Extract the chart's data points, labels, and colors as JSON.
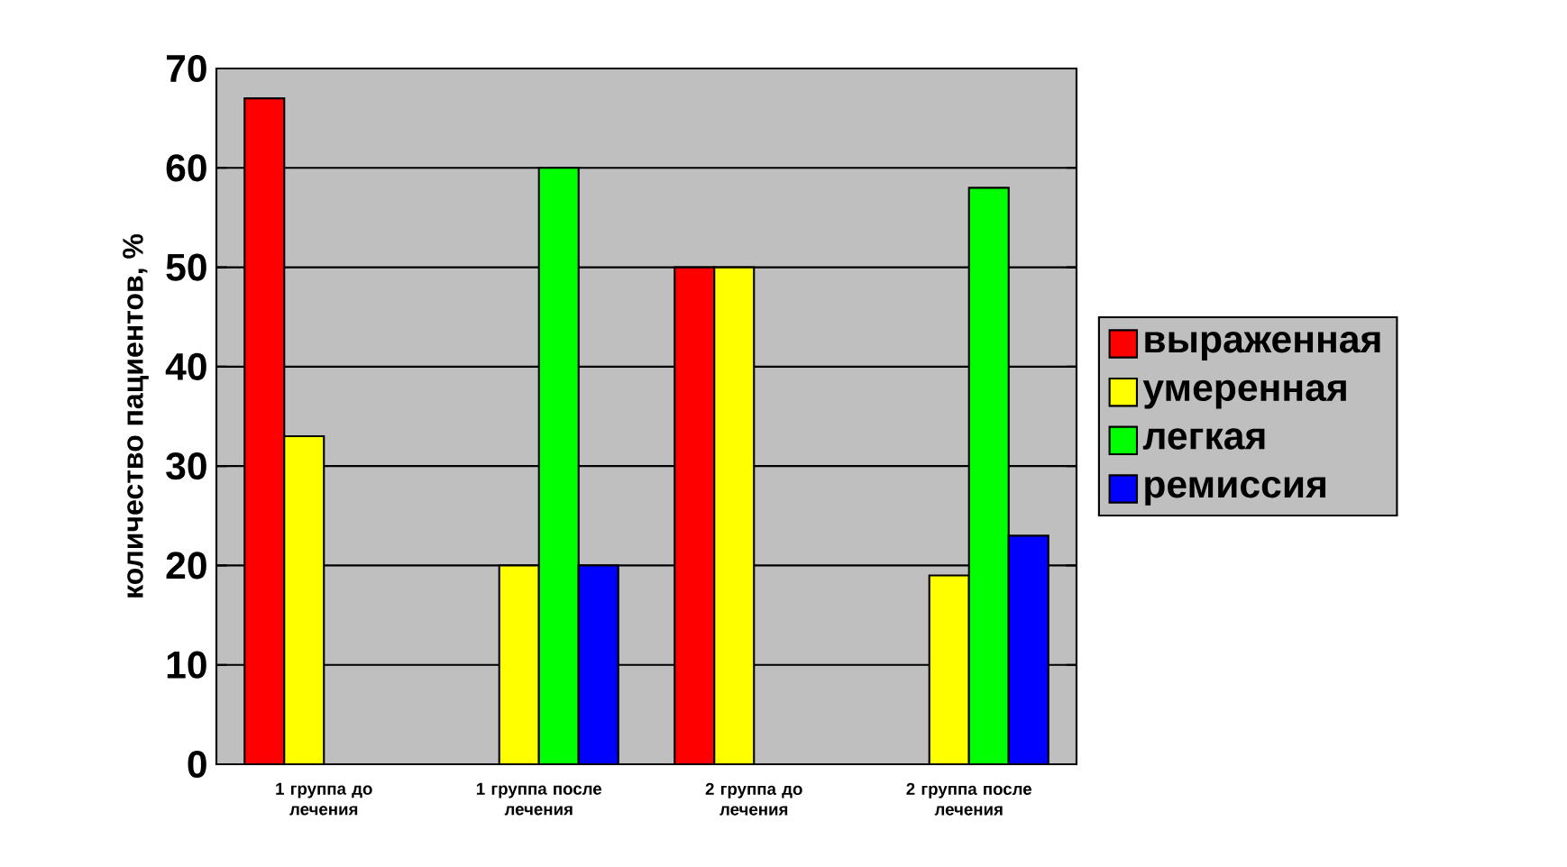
{
  "chart_data": {
    "type": "bar",
    "ylabel": "количество пациентов, %",
    "categories": [
      "1 группа до лечения",
      "1 группа после лечения",
      "2 группа до лечения",
      "2 группа после лечения"
    ],
    "series": [
      {
        "name": "выраженная",
        "color": "#ff0000",
        "values": [
          67,
          null,
          50,
          null
        ]
      },
      {
        "name": "умеренная",
        "color": "#ffff00",
        "values": [
          33,
          20,
          50,
          19
        ]
      },
      {
        "name": "легкая",
        "color": "#00ff00",
        "values": [
          null,
          60,
          null,
          58
        ]
      },
      {
        "name": "ремиссия",
        "color": "#0000ff",
        "values": [
          null,
          20,
          null,
          23
        ]
      }
    ],
    "ylim": [
      0,
      70
    ],
    "yticks": [
      0,
      10,
      20,
      30,
      40,
      50,
      60,
      70
    ],
    "grid": "y",
    "legend": "right"
  }
}
